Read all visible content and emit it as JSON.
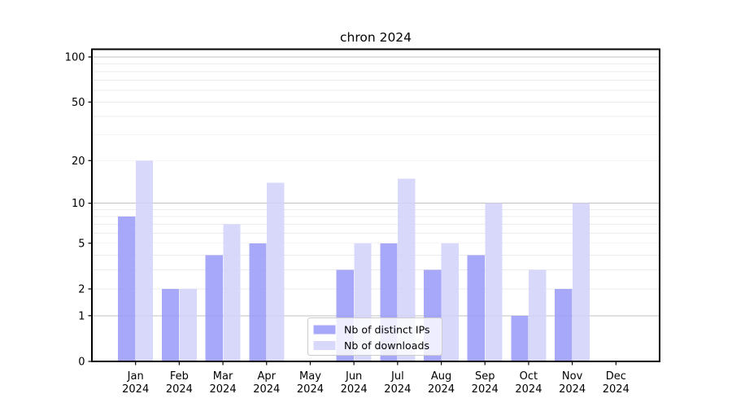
{
  "page": {
    "background": "#ffffff"
  },
  "chart_data": {
    "type": "bar",
    "title": "chron 2024",
    "year_label": "2024",
    "categories": [
      "Jan",
      "Feb",
      "Mar",
      "Apr",
      "May",
      "Jun",
      "Jul",
      "Aug",
      "Sep",
      "Oct",
      "Nov",
      "Dec"
    ],
    "series": [
      {
        "name": "Nb of distinct IPs",
        "color": "#9b9bf9",
        "values": [
          8,
          2,
          4,
          5,
          0,
          3,
          5,
          3,
          4,
          1,
          2,
          0
        ]
      },
      {
        "name": "Nb of downloads",
        "color": "#d2d2fa",
        "values": [
          20,
          2,
          7,
          14,
          0,
          5,
          15,
          5,
          10,
          3,
          10,
          0
        ]
      }
    ],
    "bar_opacity": 0.87,
    "yscale": "log1p",
    "ylim": [
      0,
      113
    ],
    "yticks": [
      0,
      1,
      2,
      5,
      10,
      20,
      50,
      100
    ],
    "xlabel": "",
    "ylabel": "",
    "grid": {
      "on": true,
      "minor": [
        2,
        3,
        4,
        5,
        6,
        7,
        8,
        9,
        20,
        30,
        40,
        50,
        60,
        70,
        80,
        90
      ],
      "major": [
        1,
        10,
        100
      ],
      "minor_color": "#ebebeb",
      "major_color": "#c0c0c0"
    },
    "legend": {
      "position": "lower center",
      "entries": [
        "Nb of distinct IPs",
        "Nb of downloads"
      ]
    }
  }
}
